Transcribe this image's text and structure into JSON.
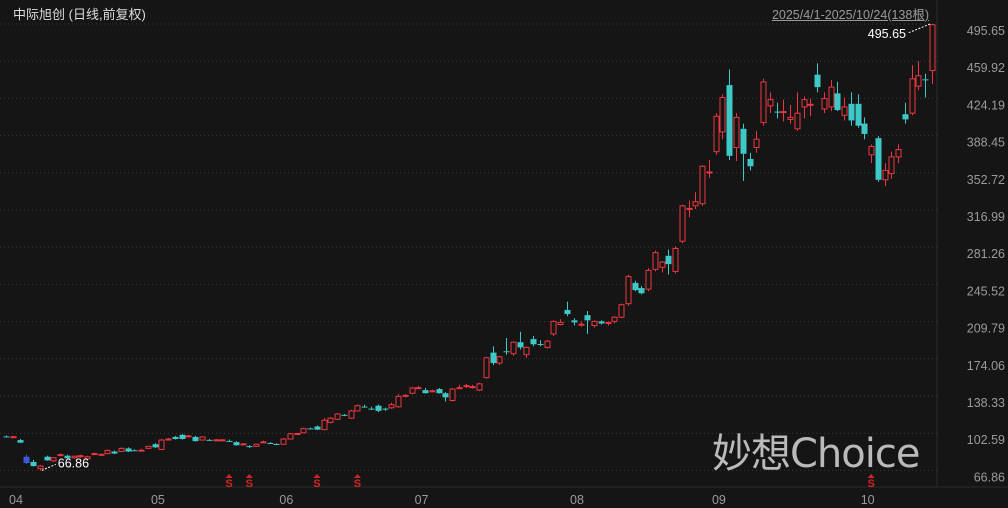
{
  "header": {
    "title": "中际旭创 (日线,前复权)",
    "range": "2025/4/1-2025/10/24(138根)"
  },
  "watermark": "妙想Choice",
  "colors": {
    "background": "#151515",
    "up": "#ee3640",
    "down": "#3ec8c8",
    "special": "#3d5ad6",
    "grid": "#3a3a3a",
    "axis_text": "#9a9a9a"
  },
  "chart_data": {
    "type": "candlestick",
    "title": "中际旭创 (日线,前复权)",
    "ylim": [
      66.86,
      495.65
    ],
    "y_ticks": [
      "495.65",
      "459.92",
      "424.19",
      "388.45",
      "352.72",
      "316.99",
      "281.26",
      "245.52",
      "209.79",
      "174.06",
      "138.33",
      "102.59",
      "66.86"
    ],
    "x_ticks": [
      {
        "label": "04",
        "index": 0
      },
      {
        "label": "05",
        "index": 21
      },
      {
        "label": "06",
        "index": 40
      },
      {
        "label": "07",
        "index": 60
      },
      {
        "label": "08",
        "index": 83
      },
      {
        "label": "09",
        "index": 104
      },
      {
        "label": "10",
        "index": 126
      }
    ],
    "grid": true,
    "ohlc_fields": [
      "open",
      "high",
      "low",
      "close"
    ],
    "ohlc": [
      [
        99.5,
        100.5,
        98.5,
        99
      ],
      [
        99,
        100,
        98.5,
        99.2
      ],
      [
        96,
        97,
        93,
        93.5
      ],
      [
        80,
        82,
        73,
        74
      ],
      [
        75,
        77,
        70.5,
        71
      ],
      [
        68.5,
        72,
        66.86,
        71
      ],
      [
        80,
        81,
        76,
        76.5
      ],
      [
        76,
        79.5,
        75,
        79
      ],
      [
        81.5,
        83,
        80.5,
        82
      ],
      [
        81,
        82,
        78,
        78.5
      ],
      [
        79,
        81,
        78,
        80.5
      ],
      [
        80,
        82,
        79,
        81
      ],
      [
        78,
        81,
        77.5,
        80
      ],
      [
        82.5,
        84,
        82,
        83
      ],
      [
        82,
        83,
        81.5,
        82.3
      ],
      [
        83,
        87,
        82.5,
        86
      ],
      [
        85,
        86,
        82.5,
        83
      ],
      [
        85,
        89,
        84.5,
        88
      ],
      [
        88,
        89,
        84.5,
        85
      ],
      [
        86.2,
        87,
        85.5,
        86
      ],
      [
        86,
        87.5,
        85.5,
        86.3
      ],
      [
        88,
        90.5,
        87.5,
        90
      ],
      [
        92,
        93,
        88.5,
        89
      ],
      [
        87,
        97,
        86.5,
        96
      ],
      [
        96.5,
        98,
        96,
        97
      ],
      [
        99,
        100,
        96.5,
        97
      ],
      [
        101,
        102,
        96.5,
        97
      ],
      [
        99.5,
        101,
        99,
        100
      ],
      [
        99,
        100,
        94.5,
        95
      ],
      [
        96,
        99.5,
        95.5,
        99
      ],
      [
        96.2,
        97,
        95.5,
        96
      ],
      [
        96,
        97,
        95.5,
        96.2
      ],
      [
        96,
        97,
        95.5,
        96.2
      ],
      [
        95.2,
        96.5,
        94.5,
        95
      ],
      [
        94,
        95,
        90.5,
        91
      ],
      [
        92,
        93,
        91.5,
        92.3
      ],
      [
        90.2,
        91,
        88.5,
        90
      ],
      [
        90,
        92.5,
        89.5,
        92
      ],
      [
        94,
        95.5,
        93.5,
        94.3
      ],
      [
        93.2,
        94,
        92.5,
        93
      ],
      [
        92.2,
        93,
        91.5,
        92
      ],
      [
        92,
        98,
        91.5,
        97
      ],
      [
        97,
        103,
        96.5,
        102
      ],
      [
        102,
        103,
        101.5,
        102.3
      ],
      [
        103,
        108,
        102.5,
        107
      ],
      [
        107.2,
        108,
        106.5,
        107
      ],
      [
        109,
        110,
        105.5,
        106
      ],
      [
        106,
        117,
        105.5,
        115
      ],
      [
        113,
        118,
        112,
        117
      ],
      [
        116,
        122,
        115.5,
        121
      ],
      [
        120.2,
        121,
        119,
        120
      ],
      [
        117,
        125,
        116.5,
        124
      ],
      [
        124,
        130,
        123.5,
        129
      ],
      [
        128.2,
        130,
        127,
        128
      ],
      [
        126.2,
        128,
        125,
        126
      ],
      [
        129,
        130,
        123,
        124
      ],
      [
        126.2,
        127,
        124,
        126
      ],
      [
        127,
        132,
        126,
        130
      ],
      [
        128,
        140,
        127,
        138
      ],
      [
        138,
        140,
        137,
        139
      ],
      [
        141,
        147,
        140,
        146
      ],
      [
        146,
        148,
        145,
        146.3
      ],
      [
        144,
        146,
        140.5,
        141
      ],
      [
        143,
        144.5,
        142,
        143.3
      ],
      [
        145,
        146,
        140.5,
        141
      ],
      [
        141,
        142,
        133,
        137
      ],
      [
        134,
        146,
        133,
        145
      ],
      [
        146,
        149,
        145,
        146.3
      ],
      [
        148,
        150,
        146,
        148.3
      ],
      [
        147,
        149,
        145.5,
        147.3
      ],
      [
        144,
        151,
        143,
        150
      ],
      [
        156,
        176,
        155,
        175
      ],
      [
        180,
        186,
        168,
        170
      ],
      [
        170,
        177,
        168,
        176
      ],
      [
        181.3,
        194,
        178,
        181
      ],
      [
        179,
        191,
        177,
        190
      ],
      [
        190,
        200,
        183,
        185
      ],
      [
        178,
        186,
        175,
        185
      ],
      [
        193,
        196,
        186,
        188
      ],
      [
        188.3,
        192,
        186,
        188
      ],
      [
        185,
        192,
        184,
        191
      ],
      [
        198,
        211,
        196,
        210
      ],
      [
        207,
        212,
        206,
        209
      ],
      [
        221,
        229,
        215,
        217
      ],
      [
        211,
        213,
        206,
        209
      ],
      [
        207,
        210,
        205,
        207.3
      ],
      [
        216,
        220,
        198,
        211
      ],
      [
        206,
        211,
        204,
        210
      ],
      [
        210,
        211,
        207,
        208
      ],
      [
        208,
        210,
        206,
        209
      ],
      [
        210,
        215,
        208,
        214
      ],
      [
        214,
        227,
        213,
        226
      ],
      [
        227,
        255,
        225,
        253
      ],
      [
        247,
        249,
        239,
        240
      ],
      [
        242,
        244,
        236,
        237
      ],
      [
        241,
        261,
        239,
        259
      ],
      [
        260,
        278,
        258,
        276
      ],
      [
        262,
        268,
        257,
        267
      ],
      [
        273,
        279,
        255,
        265
      ],
      [
        258,
        282,
        256,
        280
      ],
      [
        287,
        322,
        285,
        321
      ],
      [
        318,
        326,
        310,
        318.5
      ],
      [
        321,
        334,
        318,
        325
      ],
      [
        323,
        360,
        321,
        359
      ],
      [
        353,
        365,
        348,
        353.5
      ],
      [
        373,
        410,
        370,
        407
      ],
      [
        392,
        428,
        385,
        425
      ],
      [
        437,
        452,
        365,
        369
      ],
      [
        377,
        410,
        364,
        406
      ],
      [
        395,
        400,
        345,
        371
      ],
      [
        366,
        372,
        355,
        359
      ],
      [
        377,
        393,
        372,
        385
      ],
      [
        401,
        443,
        398,
        440
      ],
      [
        417,
        430,
        410,
        423
      ],
      [
        411.5,
        420,
        405,
        411
      ],
      [
        411,
        423,
        402,
        411.5
      ],
      [
        404,
        418,
        400,
        406
      ],
      [
        395,
        430,
        393,
        410
      ],
      [
        416,
        426,
        405,
        423
      ],
      [
        418,
        424,
        407,
        418.5
      ],
      [
        447,
        458,
        430,
        435
      ],
      [
        414,
        430,
        410,
        424
      ],
      [
        416,
        442,
        412,
        435
      ],
      [
        429,
        440,
        412,
        413
      ],
      [
        408,
        425,
        403,
        416
      ],
      [
        419,
        430,
        398,
        403
      ],
      [
        419,
        428,
        396,
        398
      ],
      [
        400,
        406,
        385,
        390
      ],
      [
        370,
        380,
        362,
        378
      ],
      [
        386,
        388,
        344,
        346
      ],
      [
        346,
        362,
        340,
        355
      ],
      [
        352,
        373,
        347,
        368
      ],
      [
        368,
        380,
        362,
        375
      ],
      [
        409,
        420,
        400,
        404
      ],
      [
        410,
        456,
        408,
        443
      ],
      [
        436,
        460,
        432,
        446
      ],
      [
        442.5,
        448,
        425,
        442
      ],
      [
        451,
        495.65,
        438,
        495
      ]
    ],
    "special_candles": [
      {
        "index": 3,
        "color": "#3d5ad6"
      }
    ],
    "annotations": [
      {
        "label": "495.65",
        "index": 137,
        "value": 495.65,
        "type": "max"
      },
      {
        "label": "66.86",
        "index": 5,
        "value": 66.86,
        "type": "min"
      }
    ],
    "markers": [
      {
        "label": "S",
        "index": 33
      },
      {
        "label": "S",
        "index": 36
      },
      {
        "label": "S",
        "index": 46
      },
      {
        "label": "S",
        "index": 52
      },
      {
        "label": "S",
        "index": 128
      }
    ]
  }
}
